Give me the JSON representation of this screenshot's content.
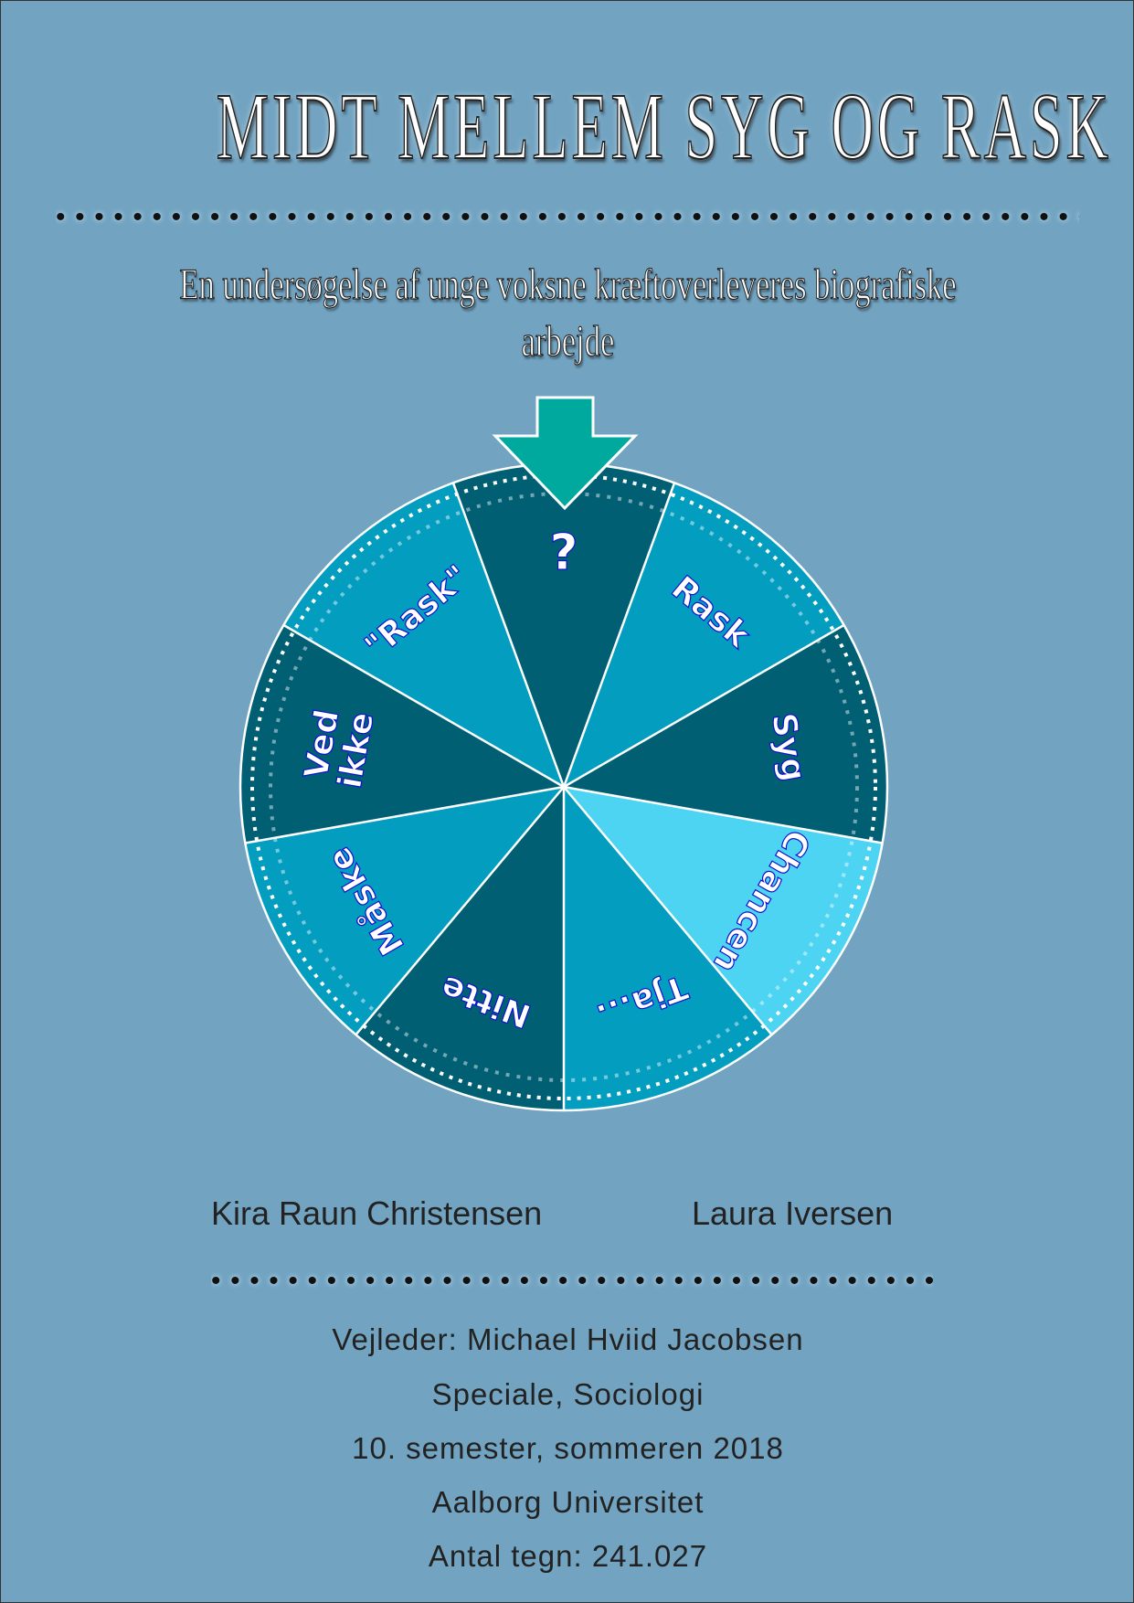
{
  "title": "MIDT MELLEM SYG OG RASK",
  "subtitle_line1": "En undersøgelse af unge voksne kræftoverleveres biografiske",
  "subtitle_line2": "arbejde",
  "wheel": {
    "segments": [
      {
        "label": "?",
        "color": "#005f73"
      },
      {
        "label": "Rask",
        "color": "#039dc0"
      },
      {
        "label": "Syg",
        "color": "#005f73"
      },
      {
        "label": "Chancen",
        "color": "#4dd4f2"
      },
      {
        "label": "Tja...",
        "color": "#039dc0"
      },
      {
        "label": "Nitte",
        "color": "#005f73"
      },
      {
        "label": "Måske",
        "color": "#039dc0"
      },
      {
        "label": "Ved ikke",
        "color": "#005f73"
      },
      {
        "label": "\"Rask\"",
        "color": "#039dc0"
      }
    ],
    "pointer_color": "#00a99d",
    "selected": "?"
  },
  "authors": [
    "Kira Raun Christensen",
    "Laura Iversen"
  ],
  "info": [
    "Vejleder: Michael Hviid Jacobsen",
    "Speciale, Sociologi",
    "10. semester, sommeren 2018",
    "Aalborg Universitet",
    "Antal tegn: 241.027"
  ],
  "colors": {
    "background": "#72a4c2"
  }
}
